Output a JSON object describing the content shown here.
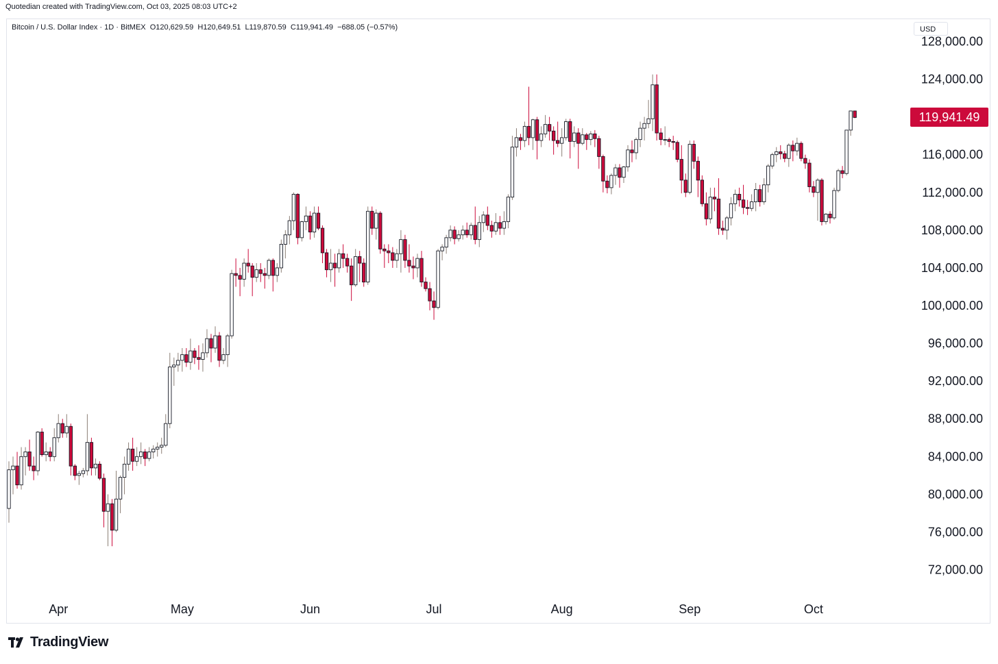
{
  "header": {
    "attribution": "Quotedian created with TradingView.com, Oct 03, 2025 08:03 UTC+2"
  },
  "legend": {
    "symbol": "Bitcoin / U.S. Dollar Index · 1D · BitMEX",
    "open": "O120,629.59",
    "high": "H120,649.51",
    "low": "L119,870.59",
    "close": "C119,941.49",
    "change": "−688.05 (−0.57%)"
  },
  "currency": "USD",
  "last_price_label": "119,941.49",
  "brand": {
    "name": "TradingView",
    "logo_icon": "tradingview-logo-icon"
  },
  "colors": {
    "up": "#ffffff",
    "down": "#cc0a3b",
    "wick_up": "#8c7f76",
    "wick_down": "#cc0a3b",
    "outline": "#131722"
  },
  "chart_data": {
    "type": "candlestick",
    "title": "",
    "xlabel": "",
    "ylabel": "",
    "ylim": [
      70000,
      128500
    ],
    "y_ticks": [
      "128,000.00",
      "124,000.00",
      "116,000.00",
      "112,000.00",
      "108,000.00",
      "104,000.00",
      "100,000.00",
      "96,000.00",
      "92,000.00",
      "88,000.00",
      "84,000.00",
      "80,000.00",
      "76,000.00",
      "72,000.00"
    ],
    "x_ticks": [
      "Apr",
      "May",
      "Jun",
      "Jul",
      "Aug",
      "Sep",
      "Oct"
    ],
    "tick_days": [
      12,
      42,
      73,
      103,
      134,
      165,
      195
    ],
    "last_price": 119941.49,
    "ohlc": [
      [
        78500,
        83500,
        77000,
        82600
      ],
      [
        82600,
        84000,
        80000,
        83000
      ],
      [
        83000,
        84500,
        80600,
        81000
      ],
      [
        81000,
        85000,
        80500,
        84000
      ],
      [
        84000,
        85000,
        82000,
        84500
      ],
      [
        84500,
        85800,
        82500,
        83000
      ],
      [
        83000,
        84000,
        81500,
        82500
      ],
      [
        82500,
        86700,
        82000,
        86600
      ],
      [
        86600,
        87000,
        84000,
        84200
      ],
      [
        84200,
        85500,
        83500,
        84500
      ],
      [
        84500,
        85000,
        83500,
        84000
      ],
      [
        84000,
        87000,
        83500,
        86000
      ],
      [
        86000,
        88500,
        85500,
        87500
      ],
      [
        87500,
        88000,
        86000,
        86500
      ],
      [
        86500,
        88500,
        86000,
        87200
      ],
      [
        87200,
        87500,
        82000,
        83000
      ],
      [
        83000,
        83200,
        81500,
        82000
      ],
      [
        82000,
        82500,
        81000,
        82200
      ],
      [
        82200,
        82800,
        81800,
        82500
      ],
      [
        82500,
        88500,
        82000,
        85500
      ],
      [
        85500,
        86000,
        82000,
        82800
      ],
      [
        82800,
        83800,
        82000,
        83200
      ],
      [
        83200,
        83500,
        81500,
        81700
      ],
      [
        81700,
        82200,
        76500,
        78200
      ],
      [
        78200,
        80000,
        74500,
        79000
      ],
      [
        79000,
        79500,
        74500,
        76200
      ],
      [
        76200,
        82500,
        76000,
        79500
      ],
      [
        79500,
        82000,
        78000,
        81800
      ],
      [
        81800,
        84000,
        80000,
        83200
      ],
      [
        83200,
        85500,
        82500,
        84800
      ],
      [
        84800,
        86000,
        82500,
        83500
      ],
      [
        83500,
        85000,
        83000,
        84000
      ],
      [
        84000,
        85500,
        83200,
        84500
      ],
      [
        84500,
        84800,
        83000,
        83800
      ],
      [
        83800,
        85000,
        83500,
        84500
      ],
      [
        84500,
        85200,
        83800,
        84800
      ],
      [
        84800,
        85500,
        84000,
        85000
      ],
      [
        85000,
        86000,
        84300,
        85200
      ],
      [
        85200,
        88500,
        85000,
        87500
      ],
      [
        87500,
        95000,
        87000,
        93500
      ],
      [
        93500,
        94500,
        91500,
        93700
      ],
      [
        93700,
        95000,
        93000,
        94200
      ],
      [
        94200,
        95500,
        93000,
        94800
      ],
      [
        94800,
        95500,
        93500,
        94000
      ],
      [
        94000,
        96500,
        93200,
        95200
      ],
      [
        95200,
        95500,
        93800,
        94500
      ],
      [
        94500,
        95800,
        93200,
        94300
      ],
      [
        94300,
        96000,
        93000,
        95000
      ],
      [
        95000,
        97500,
        94500,
        96500
      ],
      [
        96500,
        97000,
        94000,
        95500
      ],
      [
        95500,
        97800,
        95000,
        96800
      ],
      [
        96800,
        97200,
        93500,
        94200
      ],
      [
        94200,
        95500,
        93800,
        94800
      ],
      [
        94800,
        97000,
        93500,
        96800
      ],
      [
        96800,
        103800,
        96500,
        103400
      ],
      [
        103400,
        105000,
        102000,
        103200
      ],
      [
        103200,
        104000,
        101000,
        102800
      ],
      [
        102800,
        105000,
        102000,
        104500
      ],
      [
        104500,
        106000,
        103500,
        104200
      ],
      [
        104200,
        104500,
        101000,
        103000
      ],
      [
        103000,
        104500,
        102500,
        103800
      ],
      [
        103800,
        104500,
        102500,
        103400
      ],
      [
        103400,
        104000,
        101800,
        103200
      ],
      [
        103200,
        105000,
        102800,
        104800
      ],
      [
        104800,
        105000,
        101500,
        103200
      ],
      [
        103200,
        104500,
        102500,
        104000
      ],
      [
        104000,
        107000,
        103500,
        106500
      ],
      [
        106500,
        108000,
        105000,
        107500
      ],
      [
        107500,
        109500,
        106500,
        109000
      ],
      [
        109000,
        112000,
        108000,
        111800
      ],
      [
        111800,
        111900,
        106500,
        107200
      ],
      [
        107200,
        109000,
        106800,
        108900
      ],
      [
        108900,
        110500,
        108000,
        109500
      ],
      [
        109500,
        110000,
        107000,
        107800
      ],
      [
        107800,
        110500,
        107200,
        109800
      ],
      [
        109800,
        110500,
        108000,
        108200
      ],
      [
        108200,
        108500,
        104500,
        105600
      ],
      [
        105600,
        106000,
        103000,
        103800
      ],
      [
        103800,
        106000,
        102500,
        104500
      ],
      [
        104500,
        105500,
        102000,
        104000
      ],
      [
        104000,
        106000,
        103500,
        105500
      ],
      [
        105500,
        106500,
        104000,
        105000
      ],
      [
        105000,
        105500,
        103500,
        104200
      ],
      [
        104200,
        105000,
        100500,
        102200
      ],
      [
        102200,
        106000,
        102000,
        105200
      ],
      [
        105200,
        105800,
        102500,
        104500
      ],
      [
        104500,
        105000,
        102000,
        102500
      ],
      [
        102500,
        110500,
        102200,
        110000
      ],
      [
        110000,
        110500,
        107500,
        108200
      ],
      [
        108200,
        110200,
        107000,
        109800
      ],
      [
        109800,
        110000,
        105500,
        106000
      ],
      [
        106000,
        106500,
        104000,
        105800
      ],
      [
        105800,
        106500,
        104500,
        105600
      ],
      [
        105600,
        106200,
        104000,
        104800
      ],
      [
        104800,
        106000,
        104000,
        105500
      ],
      [
        105500,
        108000,
        103500,
        107000
      ],
      [
        107000,
        107500,
        104000,
        104800
      ],
      [
        104800,
        106500,
        103500,
        104200
      ],
      [
        104200,
        105200,
        102800,
        104000
      ],
      [
        104000,
        105500,
        103000,
        105000
      ],
      [
        105000,
        105800,
        102000,
        102500
      ],
      [
        102500,
        103000,
        101500,
        101800
      ],
      [
        101800,
        102500,
        99500,
        100500
      ],
      [
        100500,
        101500,
        98500,
        99800
      ],
      [
        99800,
        106000,
        99600,
        105800
      ],
      [
        105800,
        106500,
        104800,
        106200
      ],
      [
        106200,
        107500,
        105500,
        107200
      ],
      [
        107200,
        108500,
        106800,
        108000
      ],
      [
        108000,
        108400,
        106500,
        107100
      ],
      [
        107100,
        108000,
        106800,
        107500
      ],
      [
        107500,
        108500,
        107000,
        108000
      ],
      [
        108000,
        108800,
        107200,
        107500
      ],
      [
        107500,
        108800,
        107000,
        108500
      ],
      [
        108500,
        110500,
        106500,
        107000
      ],
      [
        107000,
        109500,
        106200,
        108800
      ],
      [
        108800,
        110000,
        107800,
        109600
      ],
      [
        109600,
        110500,
        108000,
        108500
      ],
      [
        108500,
        109000,
        107200,
        107900
      ],
      [
        107900,
        109800,
        107500,
        108800
      ],
      [
        108800,
        109500,
        107500,
        108200
      ],
      [
        108200,
        110000,
        107500,
        108900
      ],
      [
        108900,
        111800,
        108200,
        111500
      ],
      [
        111500,
        118000,
        111200,
        116800
      ],
      [
        116800,
        118800,
        115800,
        117800
      ],
      [
        117800,
        118200,
        116500,
        117500
      ],
      [
        117500,
        119500,
        116800,
        119000
      ],
      [
        119000,
        123200,
        117000,
        117800
      ],
      [
        117800,
        119800,
        116500,
        119700
      ],
      [
        119700,
        120000,
        115500,
        117500
      ],
      [
        117500,
        119000,
        116800,
        118200
      ],
      [
        118200,
        120200,
        117800,
        119200
      ],
      [
        119200,
        120000,
        117500,
        118500
      ],
      [
        118500,
        119000,
        116000,
        117500
      ],
      [
        117500,
        119500,
        116800,
        117200
      ],
      [
        117200,
        118800,
        115800,
        117800
      ],
      [
        117800,
        119800,
        117500,
        119500
      ],
      [
        119500,
        119800,
        115600,
        117400
      ],
      [
        117400,
        119000,
        116800,
        118300
      ],
      [
        118300,
        118800,
        114500,
        117200
      ],
      [
        117200,
        118800,
        117000,
        118100
      ],
      [
        118100,
        118300,
        116500,
        117600
      ],
      [
        117600,
        118500,
        117000,
        118200
      ],
      [
        118200,
        118600,
        116800,
        117700
      ],
      [
        117700,
        118000,
        114500,
        115800
      ],
      [
        115800,
        116000,
        112000,
        113200
      ],
      [
        113200,
        113800,
        111900,
        112500
      ],
      [
        112500,
        114000,
        111800,
        113800
      ],
      [
        113800,
        115000,
        112800,
        114600
      ],
      [
        114600,
        115000,
        112500,
        113600
      ],
      [
        113600,
        114800,
        113000,
        114700
      ],
      [
        114700,
        117000,
        114200,
        116500
      ],
      [
        116500,
        117500,
        115200,
        116200
      ],
      [
        116200,
        117800,
        115500,
        117600
      ],
      [
        117600,
        119500,
        116800,
        118800
      ],
      [
        118800,
        120000,
        117500,
        119300
      ],
      [
        119300,
        121800,
        118800,
        119800
      ],
      [
        119800,
        124500,
        118500,
        123400
      ],
      [
        123400,
        124500,
        117500,
        118300
      ],
      [
        118300,
        118800,
        117000,
        117600
      ],
      [
        117600,
        119000,
        117000,
        117600
      ],
      [
        117600,
        117800,
        116800,
        117400
      ],
      [
        117400,
        118000,
        116500,
        117300
      ],
      [
        117300,
        117500,
        115200,
        115500
      ],
      [
        115500,
        117000,
        111900,
        113300
      ],
      [
        113300,
        114000,
        111500,
        112000
      ],
      [
        112000,
        117500,
        111800,
        117100
      ],
      [
        117100,
        117500,
        114500,
        115300
      ],
      [
        115300,
        115800,
        111500,
        113300
      ],
      [
        113300,
        113800,
        110500,
        110800
      ],
      [
        110800,
        112000,
        108500,
        109200
      ],
      [
        109200,
        112500,
        108700,
        111500
      ],
      [
        111500,
        112500,
        110000,
        111300
      ],
      [
        111300,
        113500,
        107500,
        108200
      ],
      [
        108200,
        109000,
        107500,
        108000
      ],
      [
        108000,
        109500,
        107000,
        109300
      ],
      [
        109300,
        111500,
        108500,
        110800
      ],
      [
        110800,
        112300,
        110000,
        111800
      ],
      [
        111800,
        112500,
        110500,
        111200
      ],
      [
        111200,
        112800,
        109700,
        110400
      ],
      [
        110400,
        111200,
        109600,
        110300
      ],
      [
        110300,
        111800,
        110000,
        111000
      ],
      [
        111000,
        113000,
        110000,
        112300
      ],
      [
        112300,
        112800,
        110500,
        111000
      ],
      [
        111000,
        113500,
        110700,
        112800
      ],
      [
        112800,
        115000,
        112000,
        114800
      ],
      [
        114800,
        116200,
        114500,
        116000
      ],
      [
        116000,
        116800,
        115200,
        116300
      ],
      [
        116300,
        117000,
        115500,
        116100
      ],
      [
        116100,
        116400,
        115200,
        115600
      ],
      [
        115600,
        117200,
        114700,
        117000
      ],
      [
        117000,
        117500,
        115300,
        116400
      ],
      [
        116400,
        117800,
        115900,
        117200
      ],
      [
        117200,
        117400,
        115300,
        115600
      ],
      [
        115600,
        116000,
        114500,
        115100
      ],
      [
        115100,
        115500,
        112000,
        112600
      ],
      [
        112600,
        113200,
        111500,
        112000
      ],
      [
        112000,
        113500,
        109000,
        113300
      ],
      [
        113300,
        113500,
        108500,
        108900
      ],
      [
        108900,
        109800,
        108600,
        109700
      ],
      [
        109700,
        110000,
        108700,
        109300
      ],
      [
        109300,
        112500,
        109100,
        112200
      ],
      [
        112200,
        114500,
        112000,
        114300
      ],
      [
        114300,
        114800,
        113500,
        114000
      ],
      [
        114000,
        118500,
        113800,
        118600
      ],
      [
        118600,
        120650,
        118000,
        120630
      ],
      [
        120630,
        120650,
        119870,
        119940
      ]
    ]
  }
}
